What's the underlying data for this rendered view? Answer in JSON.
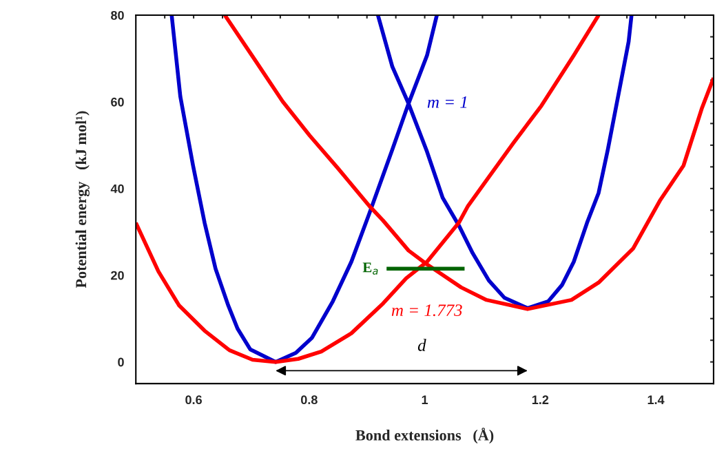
{
  "chart_data": {
    "type": "line",
    "xlabel": "Bond extensions   (Å)",
    "ylabel": "Potential energy   (kJ mol¹)",
    "xlim": [
      0.5,
      1.5
    ],
    "ylim": [
      -5,
      80
    ],
    "xticks": [
      {
        "value": 0.55,
        "label": null
      },
      0.6,
      {
        "value": 0.65,
        "label": null
      },
      {
        "value": 0.7,
        "label": null
      },
      {
        "value": 0.75,
        "label": null
      },
      0.8,
      {
        "value": 0.85,
        "label": null
      },
      {
        "value": 0.9,
        "label": null
      },
      {
        "value": 0.95,
        "label": null
      },
      1,
      {
        "value": 1.05,
        "label": null
      },
      {
        "value": 1.1,
        "label": null
      },
      {
        "value": 1.15,
        "label": null
      },
      1.2,
      {
        "value": 1.25,
        "label": null
      },
      {
        "value": 1.3,
        "label": null
      },
      {
        "value": 1.35,
        "label": null
      },
      1.4,
      {
        "value": 1.45,
        "label": null
      }
    ],
    "yticks": [
      0,
      {
        "value": 5,
        "label": null
      },
      {
        "value": 10,
        "label": null
      },
      {
        "value": 15,
        "label": null
      },
      20,
      {
        "value": 25,
        "label": null
      },
      {
        "value": 30,
        "label": null
      },
      {
        "value": 35,
        "label": null
      },
      40,
      {
        "value": 45,
        "label": null
      },
      {
        "value": 50,
        "label": null
      },
      {
        "value": 55,
        "label": null
      },
      60,
      {
        "value": 65,
        "label": null
      },
      {
        "value": 70,
        "label": null
      },
      {
        "value": 75,
        "label": null
      },
      80
    ],
    "series": [
      {
        "color": "#0000cc",
        "x": [
          0.562,
          0.577,
          0.599,
          0.619,
          0.638,
          0.66,
          0.676,
          0.698,
          0.742,
          0.777,
          0.805,
          0.841,
          0.873,
          0.904,
          0.944,
          0.972,
          1.004,
          1.021
        ],
        "values": [
          80,
          61.2,
          45.3,
          32.1,
          21.5,
          13.0,
          7.7,
          2.9,
          0,
          2.1,
          5.6,
          14.0,
          23.1,
          34.2,
          49.0,
          59.6,
          70.7,
          80
        ]
      },
      {
        "name": "m = 1",
        "color": "#0000cc",
        "x": [
          0.919,
          0.944,
          0.972,
          1.004,
          1.031,
          1.059,
          1.083,
          1.111,
          1.138,
          1.178,
          1.214,
          1.238,
          1.258,
          1.281,
          1.301,
          1.317,
          1.337,
          1.353,
          1.358
        ],
        "values": [
          80,
          68.1,
          59.6,
          48.5,
          37.9,
          31.5,
          25.1,
          18.8,
          14.8,
          12.4,
          14.0,
          17.8,
          23.1,
          32.1,
          39.0,
          49.0,
          62.8,
          73.9,
          80
        ]
      },
      {
        "name": "m = 1.773",
        "color": "#ff0000",
        "x": [
          0.5,
          0.539,
          0.575,
          0.619,
          0.662,
          0.702,
          0.742,
          0.781,
          0.821,
          0.873,
          0.928,
          0.968,
          1.004,
          1.059,
          1.075,
          1.154,
          1.202,
          1.258,
          1.301
        ],
        "values": [
          32.1,
          20.9,
          13.0,
          7.2,
          2.7,
          0.5,
          0,
          0.7,
          2.4,
          6.6,
          13.5,
          19.3,
          23.1,
          32.1,
          36.0,
          50.6,
          59.1,
          70.7,
          80
        ]
      },
      {
        "color": "#ff0000",
        "x": [
          0.654,
          0.706,
          0.754,
          0.801,
          0.849,
          0.904,
          0.928,
          0.972,
          1.004,
          1.063,
          1.107,
          1.178,
          1.254,
          1.301,
          1.361,
          1.408,
          1.448,
          1.48,
          1.5
        ],
        "values": [
          80,
          69.7,
          60.1,
          52.2,
          44.8,
          36.0,
          32.6,
          25.7,
          22.5,
          17.2,
          14.3,
          12.2,
          14.3,
          18.3,
          26.2,
          37.4,
          45.3,
          58.6,
          65.5
        ]
      },
      {
        "name": "E$_{a}$",
        "color": "#006400",
        "x": [
          0.934,
          1.069
        ],
        "values": [
          21.5,
          21.5
        ]
      }
    ],
    "annotations": [
      "d"
    ]
  }
}
